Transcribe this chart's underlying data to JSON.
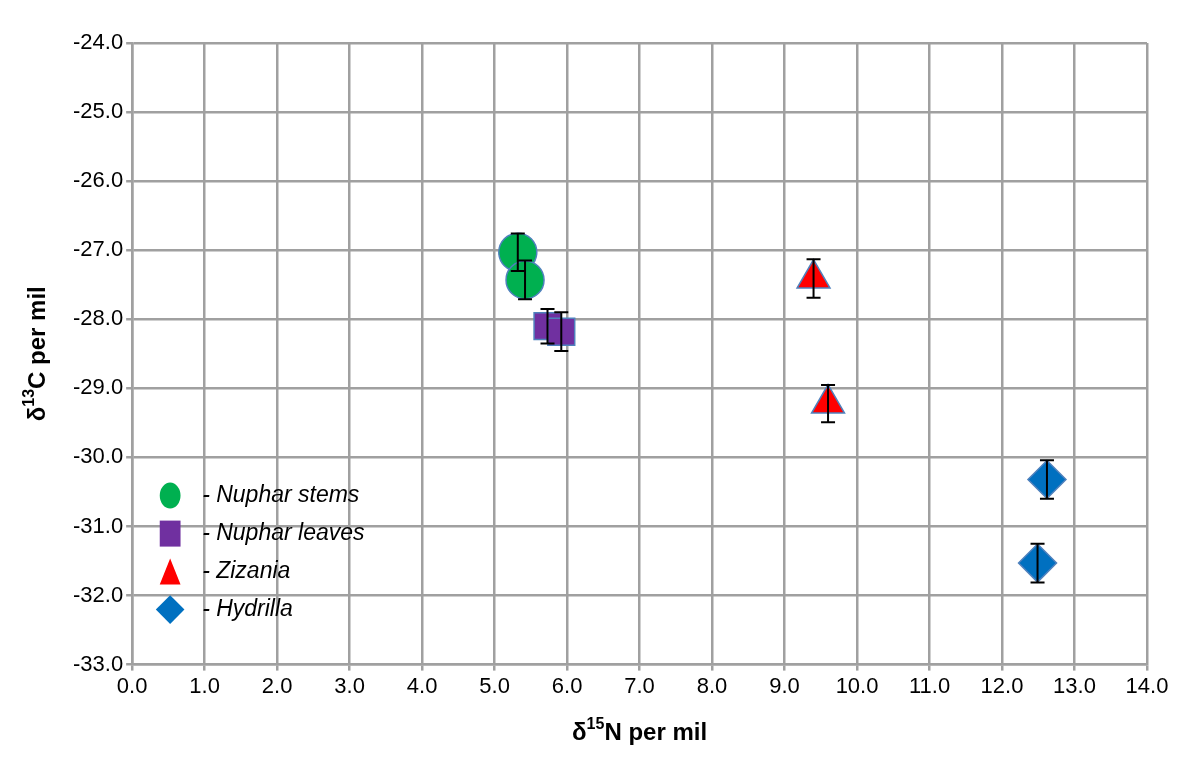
{
  "chart_data": {
    "type": "scatter",
    "xlabel": "δ$^{15}$N per mil",
    "ylabel": "δ$^{13}$C per mil",
    "xlim": [
      0,
      14
    ],
    "xticks": [
      {
        "value": 0,
        "label": "0.0"
      },
      {
        "value": 1,
        "label": "1.0"
      },
      {
        "value": 2,
        "label": "2.0"
      },
      {
        "value": 3,
        "label": "3.0"
      },
      {
        "value": 4,
        "label": "4.0"
      },
      {
        "value": 5,
        "label": "5.0"
      },
      {
        "value": 6,
        "label": "6.0"
      },
      {
        "value": 7,
        "label": "7.0"
      },
      {
        "value": 8,
        "label": "8.0"
      },
      {
        "value": 9,
        "label": "9.0"
      },
      {
        "value": 10,
        "label": "10.0"
      },
      {
        "value": 11,
        "label": "11.0"
      },
      {
        "value": 12,
        "label": "12.0"
      },
      {
        "value": 13,
        "label": "13.0"
      },
      {
        "value": 14,
        "label": "14.0"
      }
    ],
    "ylim": [
      -33,
      -24
    ],
    "yticks": [
      {
        "value": -33,
        "label": "-33.0"
      },
      {
        "value": -32,
        "label": "-32.0"
      },
      {
        "value": -31,
        "label": "-31.0"
      },
      {
        "value": -30,
        "label": "-30.0"
      },
      {
        "value": -29,
        "label": "-29.0"
      },
      {
        "value": -28,
        "label": "-28.0"
      },
      {
        "value": -27,
        "label": "-27.0"
      },
      {
        "value": -26,
        "label": "-26.0"
      },
      {
        "value": -25,
        "label": "-25.0"
      },
      {
        "value": -24,
        "label": "-24.0"
      }
    ],
    "grid": true,
    "legend": "bottom left",
    "series": [
      {
        "name": "- Nuphar stems",
        "color": "#00b050",
        "marker": "circle",
        "x": [
          5.32,
          5.42
        ],
        "values": [
          -27.03,
          -27.43
        ],
        "errors": [
          0.27,
          0.28
        ]
      },
      {
        "name": "- Nuphar leaves",
        "color": "#7030a0",
        "marker": "square",
        "x": [
          5.73,
          5.92
        ],
        "values": [
          -28.1,
          -28.18
        ],
        "errors": [
          0.25,
          0.28
        ]
      },
      {
        "name": "- Zizania",
        "color": "#ff0000",
        "marker": "triangle",
        "x": [
          9.4,
          9.6
        ],
        "values": [
          -27.41,
          -29.22
        ],
        "errors": [
          0.28,
          0.27
        ]
      },
      {
        "name": "- Hydrilla",
        "color": "#0070c0",
        "marker": "diamond",
        "x": [
          12.62,
          12.49
        ],
        "values": [
          -30.32,
          -31.53
        ],
        "errors": [
          0.28,
          0.28
        ]
      }
    ]
  }
}
